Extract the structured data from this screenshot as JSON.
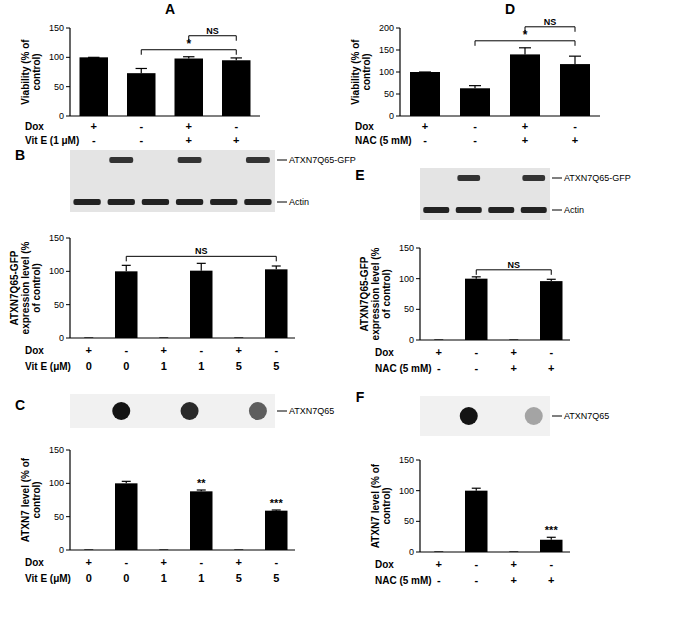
{
  "chart_data": [
    {
      "type": "bar",
      "title": "A",
      "y_label": "Viability (% of control)",
      "categories": [
        null,
        null,
        null,
        null
      ],
      "values": [
        100,
        73,
        98,
        95
      ],
      "errors": [
        0,
        8,
        3,
        4
      ],
      "color": "#000000",
      "ylim": [
        0,
        150
      ],
      "yticks": [
        0,
        50,
        100,
        150
      ],
      "conditions": [
        {
          "label": "Dox",
          "values": [
            "+",
            "-",
            "+",
            "-"
          ]
        },
        {
          "label": "Vit E (1 μM)",
          "values": [
            "-",
            "-",
            "+",
            "+"
          ]
        }
      ],
      "annotations": [
        {
          "text": "*",
          "from": 1,
          "to": 3
        },
        {
          "text": "NS",
          "from": 2,
          "to": 3
        }
      ]
    },
    {
      "type": "bar",
      "title": "B",
      "y_label": "ATXN7Q65-GFP expression level (% of control)",
      "categories": [
        null,
        null,
        null,
        null,
        null,
        null
      ],
      "values": [
        0,
        100,
        0,
        101,
        0,
        103
      ],
      "errors": [
        0,
        9,
        0,
        11,
        0,
        5
      ],
      "color": "#000000",
      "ylim": [
        0,
        150
      ],
      "yticks": [
        0,
        50,
        100,
        150
      ],
      "conditions": [
        {
          "label": "Dox",
          "values": [
            "+",
            "-",
            "+",
            "-",
            "+",
            "-"
          ]
        },
        {
          "label": "Vit E (μM)",
          "values": [
            "0",
            "0",
            "1",
            "1",
            "5",
            "5"
          ]
        }
      ],
      "annotations": [
        {
          "text": "NS",
          "from": 1,
          "to": 5
        }
      ],
      "blot_labels": [
        "ATXN7Q65-GFP",
        "Actin"
      ]
    },
    {
      "type": "bar",
      "title": "C",
      "y_label": "ATXN7 level (% of control)",
      "categories": [
        null,
        null,
        null,
        null,
        null,
        null
      ],
      "values": [
        0,
        100,
        0,
        88,
        0,
        59
      ],
      "errors": [
        0,
        3,
        0,
        2,
        0,
        1
      ],
      "color": "#000000",
      "ylim": [
        0,
        150
      ],
      "yticks": [
        0,
        50,
        100,
        150
      ],
      "conditions": [
        {
          "label": "Dox",
          "values": [
            "+",
            "-",
            "+",
            "-",
            "+",
            "-"
          ]
        },
        {
          "label": "Vit E (μM)",
          "values": [
            "0",
            "0",
            "1",
            "1",
            "5",
            "5"
          ]
        }
      ],
      "annotations": [
        {
          "text": "**",
          "at": 3
        },
        {
          "text": "***",
          "at": 5
        }
      ],
      "blot_labels": [
        "ATXN7Q65"
      ]
    },
    {
      "type": "bar",
      "title": "D",
      "y_label": "Viability (% of control)",
      "categories": [
        null,
        null,
        null,
        null
      ],
      "values": [
        100,
        63,
        140,
        118
      ],
      "errors": [
        0,
        6,
        15,
        18
      ],
      "color": "#000000",
      "ylim": [
        0,
        200
      ],
      "yticks": [
        0,
        50,
        100,
        150,
        200
      ],
      "conditions": [
        {
          "label": "Dox",
          "values": [
            "+",
            "-",
            "+",
            "-"
          ]
        },
        {
          "label": "NAC (5 mM)",
          "values": [
            "-",
            "-",
            "+",
            "+"
          ]
        }
      ],
      "annotations": [
        {
          "text": "*",
          "from": 1,
          "to": 3
        },
        {
          "text": "NS",
          "from": 2,
          "to": 3
        }
      ]
    },
    {
      "type": "bar",
      "title": "E",
      "y_label": "ATXN7Q65-GFP expression level (% of control)",
      "categories": [
        null,
        null,
        null,
        null
      ],
      "values": [
        0,
        100,
        0,
        96
      ],
      "errors": [
        0,
        3,
        0,
        3
      ],
      "color": "#000000",
      "ylim": [
        0,
        150
      ],
      "yticks": [
        0,
        50,
        100,
        150
      ],
      "conditions": [
        {
          "label": "Dox",
          "values": [
            "+",
            "-",
            "+",
            "-"
          ]
        },
        {
          "label": "NAC (5 mM)",
          "values": [
            "-",
            "-",
            "+",
            "+"
          ]
        }
      ],
      "annotations": [
        {
          "text": "NS",
          "from": 1,
          "to": 3
        }
      ],
      "blot_labels": [
        "ATXN7Q65-GFP",
        "Actin"
      ]
    },
    {
      "type": "bar",
      "title": "F",
      "y_label": "ATXN7 level (% of control)",
      "categories": [
        null,
        null,
        null,
        null
      ],
      "values": [
        0,
        100,
        0,
        20
      ],
      "errors": [
        0,
        4,
        0,
        4
      ],
      "color": "#000000",
      "ylim": [
        0,
        150
      ],
      "yticks": [
        0,
        50,
        100,
        150
      ],
      "conditions": [
        {
          "label": "Dox",
          "values": [
            "+",
            "-",
            "+",
            "-"
          ]
        },
        {
          "label": "NAC (5 mM)",
          "values": [
            "-",
            "-",
            "+",
            "+"
          ]
        }
      ],
      "annotations": [
        {
          "text": "***",
          "at": 3
        }
      ],
      "blot_labels": [
        "ATXN7Q65"
      ]
    }
  ]
}
